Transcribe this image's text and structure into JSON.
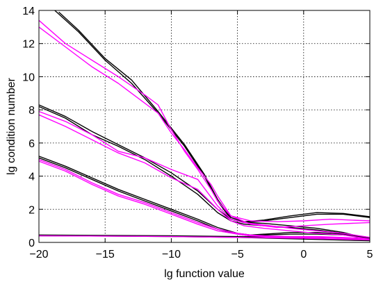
{
  "chart_data": {
    "type": "line",
    "title": "",
    "xlabel": "lg function value",
    "ylabel": "lg condition number",
    "xlim": [
      -20,
      5
    ],
    "ylim": [
      0,
      14
    ],
    "xticks": [
      -20,
      -15,
      -10,
      -5,
      0,
      5
    ],
    "xtick_labels": [
      "−20",
      "−15",
      "−10",
      "−5",
      "0",
      "5"
    ],
    "yticks": [
      0,
      2,
      4,
      6,
      8,
      10,
      12,
      14
    ],
    "ytick_labels": [
      "0",
      "2",
      "4",
      "6",
      "8",
      "10",
      "12",
      "14"
    ],
    "grid": true,
    "legend": "none",
    "colors": {
      "black": "#000000",
      "magenta": "#ff00ff"
    },
    "series": [
      {
        "color": "black",
        "x": [
          -18.5,
          -17,
          -15,
          -13,
          -11,
          -9,
          -7.5,
          -6.5,
          -5.5,
          -4.5,
          -3,
          -1,
          1,
          3,
          5
        ],
        "y": [
          13.9,
          12.8,
          11.1,
          9.8,
          7.9,
          5.9,
          4.1,
          2.6,
          1.5,
          1.25,
          1.35,
          1.6,
          1.8,
          1.75,
          1.55
        ]
      },
      {
        "color": "black",
        "x": [
          -18.8,
          -17,
          -15,
          -13,
          -11,
          -9,
          -7.5,
          -6.5,
          -5.5,
          -4.5,
          -3,
          -1,
          1,
          3,
          5
        ],
        "y": [
          14.0,
          12.7,
          11.0,
          9.6,
          7.8,
          5.8,
          4.0,
          2.5,
          1.4,
          1.2,
          1.3,
          1.5,
          1.7,
          1.7,
          1.5
        ]
      },
      {
        "color": "black",
        "x": [
          -20,
          -18,
          -16,
          -14,
          -12,
          -10,
          -8,
          -6.5,
          -5.5,
          -4.5,
          -3,
          -1,
          1,
          3,
          5
        ],
        "y": [
          8.3,
          7.6,
          6.7,
          5.9,
          5.1,
          4.2,
          3.1,
          2.0,
          1.4,
          1.2,
          1.15,
          1.0,
          0.85,
          0.6,
          0.2
        ]
      },
      {
        "color": "black",
        "x": [
          -20,
          -18,
          -16,
          -14,
          -12,
          -10,
          -8,
          -6.5,
          -5.5,
          -4.5,
          -3,
          -1,
          1,
          3,
          5
        ],
        "y": [
          8.2,
          7.5,
          6.5,
          5.8,
          5.0,
          4.0,
          2.9,
          1.8,
          1.3,
          1.1,
          1.0,
          0.9,
          0.75,
          0.55,
          0.15
        ]
      },
      {
        "color": "black",
        "x": [
          -20,
          -18,
          -16,
          -14,
          -12,
          -10,
          -8,
          -6.5,
          -5,
          -4,
          -3,
          -1,
          1,
          3,
          5
        ],
        "y": [
          5.2,
          4.6,
          3.9,
          3.2,
          2.6,
          2.0,
          1.4,
          0.9,
          0.55,
          0.45,
          0.5,
          0.6,
          0.6,
          0.5,
          0.3
        ]
      },
      {
        "color": "black",
        "x": [
          -20,
          -18,
          -16,
          -14,
          -12,
          -10,
          -8,
          -6.5,
          -5,
          -4,
          -3,
          -1,
          1,
          3,
          5
        ],
        "y": [
          5.1,
          4.5,
          3.8,
          3.1,
          2.5,
          1.9,
          1.3,
          0.8,
          0.5,
          0.4,
          0.45,
          0.5,
          0.5,
          0.45,
          0.25
        ]
      },
      {
        "color": "black",
        "x": [
          -20,
          -15,
          -10,
          -5,
          0,
          5
        ],
        "y": [
          0.45,
          0.42,
          0.4,
          0.35,
          0.3,
          0.25
        ]
      },
      {
        "color": "black",
        "x": [
          -20,
          -15,
          -10,
          -5,
          0,
          5
        ],
        "y": [
          0.4,
          0.38,
          0.35,
          0.3,
          0.2,
          0.1
        ]
      },
      {
        "color": "magenta",
        "x": [
          -20,
          -18,
          -16,
          -14,
          -12,
          -11,
          -10,
          -9,
          -8,
          -7,
          -6.5,
          -5.5,
          -4,
          -2,
          0,
          2,
          5
        ],
        "y": [
          13.4,
          12.0,
          11.0,
          10.0,
          8.9,
          8.3,
          6.8,
          5.5,
          4.4,
          3.2,
          2.5,
          1.6,
          1.3,
          1.25,
          1.3,
          1.4,
          1.3
        ]
      },
      {
        "color": "magenta",
        "x": [
          -20,
          -18,
          -16,
          -14,
          -12,
          -11,
          -10,
          -9,
          -8,
          -7,
          -6.5,
          -5.5,
          -4,
          -2,
          0,
          2,
          5
        ],
        "y": [
          13.0,
          11.8,
          10.6,
          9.6,
          8.4,
          7.8,
          6.6,
          5.6,
          4.5,
          3.5,
          2.8,
          1.6,
          1.1,
          0.9,
          1.0,
          1.1,
          1.2
        ]
      },
      {
        "color": "magenta",
        "x": [
          -20,
          -18,
          -16,
          -14,
          -12,
          -10,
          -8,
          -6.5,
          -5.5,
          -4.5,
          -3,
          -1,
          1,
          3,
          5
        ],
        "y": [
          7.9,
          7.3,
          6.5,
          5.5,
          5.1,
          4.4,
          3.8,
          2.2,
          1.4,
          1.2,
          1.05,
          0.85,
          0.7,
          0.55,
          0.3
        ]
      },
      {
        "color": "magenta",
        "x": [
          -20,
          -18,
          -16,
          -14,
          -12,
          -10,
          -8,
          -6.5,
          -5.5,
          -4.5,
          -3,
          -1,
          1,
          3,
          5
        ],
        "y": [
          7.7,
          7.0,
          6.2,
          5.4,
          4.8,
          3.9,
          3.2,
          2.0,
          1.3,
          1.0,
          0.85,
          0.7,
          0.55,
          0.45,
          0.2
        ]
      },
      {
        "color": "magenta",
        "x": [
          -20,
          -18,
          -16,
          -14,
          -12,
          -10,
          -8,
          -6.5,
          -5,
          -4,
          -3,
          -1,
          1,
          3,
          5
        ],
        "y": [
          5.0,
          4.4,
          3.6,
          2.9,
          2.4,
          1.8,
          1.2,
          0.8,
          0.55,
          0.45,
          0.4,
          0.35,
          0.35,
          0.3,
          0.2
        ]
      },
      {
        "color": "magenta",
        "x": [
          -20,
          -18,
          -16,
          -14,
          -12,
          -10,
          -8,
          -6.5,
          -5,
          -4,
          -3,
          -1,
          1,
          3,
          5
        ],
        "y": [
          4.9,
          4.3,
          3.5,
          2.8,
          2.3,
          1.7,
          1.1,
          0.7,
          0.5,
          0.4,
          0.35,
          0.3,
          0.3,
          0.25,
          0.15
        ]
      },
      {
        "color": "magenta",
        "x": [
          -20,
          -15,
          -10,
          -5,
          0,
          5
        ],
        "y": [
          0.4,
          0.38,
          0.35,
          0.3,
          0.25,
          0.15
        ]
      }
    ]
  }
}
